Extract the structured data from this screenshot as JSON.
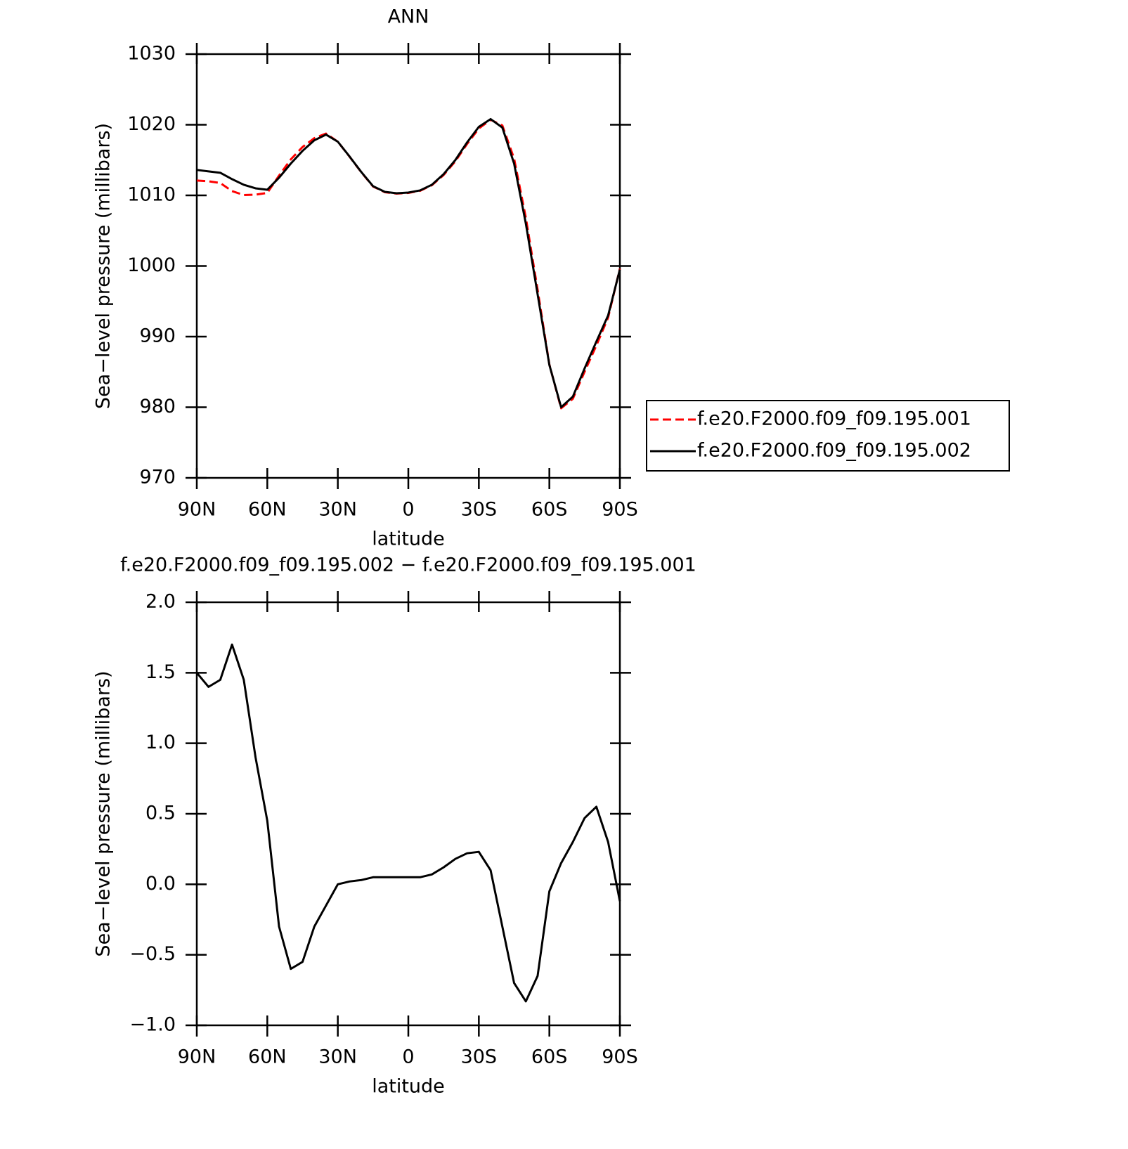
{
  "chart_data": [
    {
      "type": "line",
      "title": "ANN",
      "xlabel": "latitude",
      "ylabel": "Sea−level pressure (millibars)",
      "x": [
        90,
        85,
        80,
        75,
        70,
        65,
        60,
        55,
        50,
        45,
        40,
        35,
        30,
        25,
        20,
        15,
        10,
        5,
        0,
        -5,
        -10,
        -15,
        -20,
        -25,
        -30,
        -35,
        -40,
        -45,
        -50,
        -55,
        -60,
        -65,
        -70,
        -75,
        -80,
        -85,
        -90
      ],
      "xlim": [
        90,
        -90
      ],
      "xticks": [
        {
          "value": 90,
          "label": "90N"
        },
        {
          "value": 60,
          "label": "60N"
        },
        {
          "value": 30,
          "label": "30N"
        },
        0,
        {
          "value": -30,
          "label": "30S"
        },
        {
          "value": -60,
          "label": "60S"
        },
        {
          "value": -90,
          "label": "90S"
        }
      ],
      "ylim": [
        970,
        1030
      ],
      "yticks": [
        970,
        980,
        990,
        1000,
        1010,
        1020,
        1030
      ],
      "series": [
        {
          "name": "f.e20.F2000.f09_f09.195.001",
          "color": "#ff0000",
          "style": "dashed",
          "values": [
            1012.1,
            1012.0,
            1011.75,
            1010.6,
            1010.05,
            1010.1,
            1010.35,
            1012.8,
            1015.1,
            1016.85,
            1018.1,
            1018.75,
            1017.6,
            1015.48,
            1013.27,
            1011.25,
            1010.45,
            1010.25,
            1010.35,
            1010.65,
            1011.43,
            1012.88,
            1014.82,
            1017.28,
            1019.47,
            1020.7,
            1019.9,
            1015.2,
            1006.83,
            996.65,
            986.05,
            979.85,
            981.2,
            985.03,
            988.75,
            992.7,
            999.62
          ]
        },
        {
          "name": "f.e20.F2000.f09_f09.195.002",
          "color": "#000000",
          "style": "solid",
          "values": [
            1013.6,
            1013.4,
            1013.2,
            1012.3,
            1011.5,
            1011.0,
            1010.8,
            1012.5,
            1014.5,
            1016.3,
            1017.8,
            1018.6,
            1017.6,
            1015.5,
            1013.3,
            1011.3,
            1010.5,
            1010.3,
            1010.4,
            1010.7,
            1011.5,
            1013.0,
            1015.0,
            1017.5,
            1019.7,
            1020.8,
            1019.6,
            1014.5,
            1006.0,
            996.0,
            986.0,
            980.0,
            981.5,
            985.5,
            989.3,
            993.0,
            999.5
          ]
        }
      ]
    },
    {
      "type": "line",
      "title": "f.e20.F2000.f09_f09.195.002 − f.e20.F2000.f09_f09.195.001",
      "xlabel": "latitude",
      "ylabel": "Sea−level pressure (millibars)",
      "x": [
        90,
        85,
        80,
        75,
        70,
        65,
        60,
        55,
        50,
        45,
        40,
        35,
        30,
        25,
        20,
        15,
        10,
        5,
        0,
        -5,
        -10,
        -15,
        -20,
        -25,
        -30,
        -35,
        -40,
        -45,
        -50,
        -55,
        -60,
        -65,
        -70,
        -75,
        -80,
        -85,
        -90
      ],
      "xlim": [
        90,
        -90
      ],
      "xticks": [
        {
          "value": 90,
          "label": "90N"
        },
        {
          "value": 60,
          "label": "60N"
        },
        {
          "value": 30,
          "label": "30N"
        },
        0,
        {
          "value": -30,
          "label": "30S"
        },
        {
          "value": -60,
          "label": "60S"
        },
        {
          "value": -90,
          "label": "90S"
        }
      ],
      "ylim": [
        -1,
        2
      ],
      "yticks": [
        {
          "value": -1,
          "label": "−1.0"
        },
        {
          "value": -0.5,
          "label": "−0.5"
        },
        {
          "value": 0,
          "label": "0.0"
        },
        0.5,
        {
          "value": 1,
          "label": "1.0"
        },
        1.5,
        {
          "value": 2,
          "label": "2.0"
        }
      ],
      "color": "#000000",
      "values": [
        1.5,
        1.4,
        1.45,
        1.7,
        1.45,
        0.9,
        0.45,
        -0.3,
        -0.6,
        -0.55,
        -0.3,
        -0.15,
        0.0,
        0.02,
        0.03,
        0.05,
        0.05,
        0.05,
        0.05,
        0.05,
        0.07,
        0.12,
        0.18,
        0.22,
        0.23,
        0.1,
        -0.3,
        -0.7,
        -0.83,
        -0.65,
        -0.05,
        0.15,
        0.3,
        0.47,
        0.55,
        0.3,
        -0.12
      ]
    }
  ]
}
